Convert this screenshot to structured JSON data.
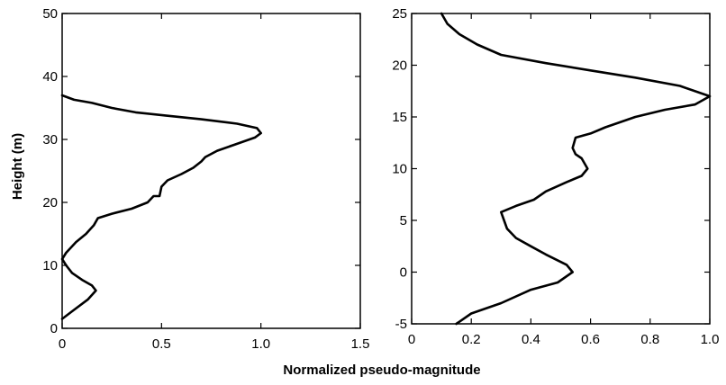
{
  "figure": {
    "shared_xlabel": "Normalized pseudo-magnitude"
  },
  "chart_data": [
    {
      "type": "line",
      "title": "",
      "xlabel": "",
      "ylabel": "Height (m)",
      "xlim": [
        0,
        1.5
      ],
      "ylim": [
        0,
        50
      ],
      "x_ticks": [
        0,
        0.5,
        1.0,
        1.5
      ],
      "x_tick_labels": [
        "0",
        "0.5",
        "1.0",
        "1.5"
      ],
      "y_ticks": [
        0,
        10,
        20,
        30,
        40,
        50
      ],
      "y_tick_labels": [
        "0",
        "10",
        "20",
        "30",
        "40",
        "50"
      ],
      "grid": false,
      "series": [
        {
          "color": "#000000",
          "points": [
            [
              0.0,
              1.5
            ],
            [
              0.05,
              2.7
            ],
            [
              0.13,
              4.6
            ],
            [
              0.17,
              6.0
            ],
            [
              0.15,
              6.8
            ],
            [
              0.1,
              7.7
            ],
            [
              0.05,
              8.8
            ],
            [
              0.02,
              10.0
            ],
            [
              0.0,
              11.0
            ],
            [
              0.02,
              12.0
            ],
            [
              0.07,
              13.7
            ],
            [
              0.12,
              15.0
            ],
            [
              0.16,
              16.4
            ],
            [
              0.18,
              17.5
            ],
            [
              0.25,
              18.2
            ],
            [
              0.35,
              19.0
            ],
            [
              0.43,
              20.0
            ],
            [
              0.46,
              21.0
            ],
            [
              0.49,
              21.0
            ],
            [
              0.5,
              22.5
            ],
            [
              0.53,
              23.5
            ],
            [
              0.6,
              24.5
            ],
            [
              0.66,
              25.5
            ],
            [
              0.7,
              26.5
            ],
            [
              0.72,
              27.2
            ],
            [
              0.78,
              28.2
            ],
            [
              0.87,
              29.2
            ],
            [
              0.97,
              30.3
            ],
            [
              1.0,
              31.0
            ],
            [
              0.98,
              31.8
            ],
            [
              0.88,
              32.5
            ],
            [
              0.7,
              33.2
            ],
            [
              0.52,
              33.8
            ],
            [
              0.37,
              34.3
            ],
            [
              0.25,
              35.0
            ],
            [
              0.15,
              35.8
            ],
            [
              0.06,
              36.3
            ],
            [
              0.0,
              37.0
            ]
          ]
        }
      ]
    },
    {
      "type": "line",
      "title": "",
      "xlabel": "",
      "ylabel": "",
      "xlim": [
        0,
        1.0
      ],
      "ylim": [
        -5,
        25
      ],
      "x_ticks": [
        0,
        0.2,
        0.4,
        0.6,
        0.8,
        1.0
      ],
      "x_tick_labels": [
        "0",
        "0.2",
        "0.4",
        "0.6",
        "0.8",
        "1.0"
      ],
      "y_ticks": [
        -5,
        0,
        5,
        10,
        15,
        20,
        25
      ],
      "y_tick_labels": [
        "-5",
        "0",
        "5",
        "10",
        "15",
        "20",
        "25"
      ],
      "grid": false,
      "series": [
        {
          "color": "#000000",
          "points": [
            [
              0.15,
              -5.0
            ],
            [
              0.2,
              -4.0
            ],
            [
              0.3,
              -3.0
            ],
            [
              0.4,
              -1.7
            ],
            [
              0.49,
              -1.0
            ],
            [
              0.54,
              0.0
            ],
            [
              0.52,
              0.7
            ],
            [
              0.45,
              1.7
            ],
            [
              0.4,
              2.5
            ],
            [
              0.35,
              3.3
            ],
            [
              0.32,
              4.2
            ],
            [
              0.31,
              5.0
            ],
            [
              0.3,
              5.8
            ],
            [
              0.35,
              6.4
            ],
            [
              0.41,
              7.0
            ],
            [
              0.45,
              7.8
            ],
            [
              0.52,
              8.7
            ],
            [
              0.57,
              9.3
            ],
            [
              0.59,
              10.0
            ],
            [
              0.57,
              11.0
            ],
            [
              0.55,
              11.4
            ],
            [
              0.54,
              12.0
            ],
            [
              0.55,
              13.0
            ],
            [
              0.6,
              13.4
            ],
            [
              0.65,
              14.0
            ],
            [
              0.75,
              15.0
            ],
            [
              0.85,
              15.7
            ],
            [
              0.95,
              16.2
            ],
            [
              1.0,
              17.0
            ],
            [
              0.9,
              18.0
            ],
            [
              0.75,
              18.8
            ],
            [
              0.6,
              19.5
            ],
            [
              0.45,
              20.2
            ],
            [
              0.3,
              21.0
            ],
            [
              0.22,
              22.0
            ],
            [
              0.16,
              23.0
            ],
            [
              0.12,
              24.0
            ],
            [
              0.1,
              25.0
            ]
          ]
        }
      ]
    }
  ]
}
